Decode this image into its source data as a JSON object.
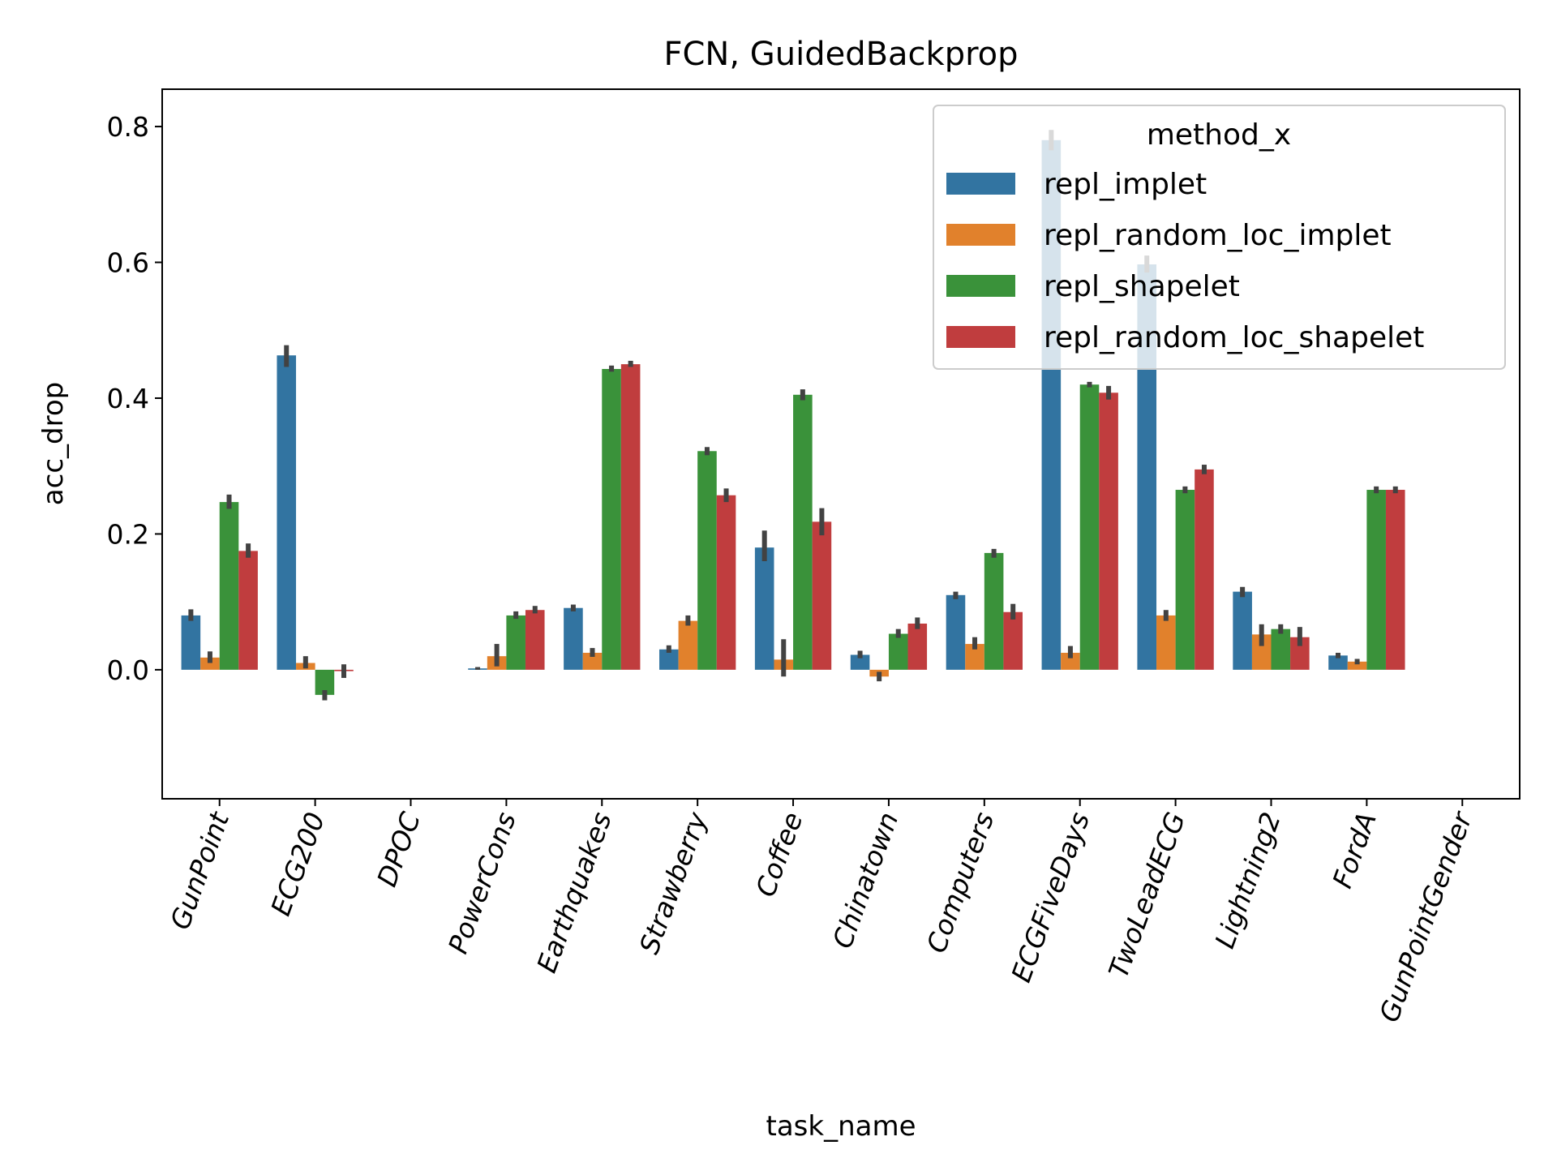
{
  "chart_data": {
    "type": "bar",
    "title": "FCN, GuidedBackprop",
    "xlabel": "task_name",
    "ylabel": "acc_drop",
    "ylim": [
      -0.19,
      0.855
    ],
    "yticks": [
      0.0,
      0.2,
      0.4,
      0.6,
      0.8
    ],
    "ytick_labels": [
      "0.0",
      "0.2",
      "0.4",
      "0.6",
      "0.8"
    ],
    "grid": false,
    "legend": {
      "title": "method_x",
      "placement": "top-right"
    },
    "categories": [
      "GunPoint",
      "ECG200",
      "DPOC",
      "PowerCons",
      "Earthquakes",
      "Strawberry",
      "Coffee",
      "Chinatown",
      "Computers",
      "ECGFiveDays",
      "TwoLeadECG",
      "Lightning2",
      "FordA",
      "GunPointGender"
    ],
    "series": [
      {
        "name": "repl_implet",
        "color": "#3274a1",
        "values": [
          0.08,
          0.463,
          null,
          0.002,
          0.091,
          0.03,
          0.18,
          0.022,
          0.11,
          0.78,
          0.597,
          0.115,
          0.021,
          null
        ],
        "err": [
          [
            0.072,
            0.089
          ],
          [
            0.446,
            0.478
          ],
          null,
          [
            0.0,
            0.004
          ],
          [
            0.086,
            0.096
          ],
          [
            0.025,
            0.036
          ],
          [
            0.16,
            0.205
          ],
          [
            0.017,
            0.028
          ],
          [
            0.104,
            0.115
          ],
          [
            0.765,
            0.795
          ],
          [
            0.585,
            0.61
          ],
          [
            0.107,
            0.122
          ],
          [
            0.017,
            0.025
          ],
          null
        ]
      },
      {
        "name": "repl_random_loc_implet",
        "color": "#e1812c",
        "values": [
          0.018,
          0.01,
          null,
          0.02,
          0.025,
          0.072,
          0.015,
          -0.01,
          0.038,
          0.025,
          0.08,
          0.052,
          0.012,
          null
        ],
        "err": [
          [
            0.01,
            0.027
          ],
          [
            0.002,
            0.02
          ],
          null,
          [
            0.005,
            0.038
          ],
          [
            0.019,
            0.032
          ],
          [
            0.065,
            0.08
          ],
          [
            -0.01,
            0.045
          ],
          [
            -0.017,
            -0.003
          ],
          [
            0.03,
            0.048
          ],
          [
            0.017,
            0.035
          ],
          [
            0.072,
            0.088
          ],
          [
            0.035,
            0.067
          ],
          [
            0.008,
            0.016
          ],
          null
        ]
      },
      {
        "name": "repl_shapelet",
        "color": "#3a923a",
        "values": [
          0.247,
          -0.037,
          null,
          0.08,
          0.443,
          0.322,
          0.405,
          0.053,
          0.172,
          0.42,
          0.265,
          0.06,
          0.265,
          null
        ],
        "err": [
          [
            0.237,
            0.258
          ],
          [
            -0.045,
            -0.03
          ],
          null,
          [
            0.075,
            0.086
          ],
          [
            0.439,
            0.448
          ],
          [
            0.316,
            0.328
          ],
          [
            0.397,
            0.413
          ],
          [
            0.047,
            0.06
          ],
          [
            0.165,
            0.178
          ],
          [
            0.416,
            0.424
          ],
          [
            0.26,
            0.27
          ],
          [
            0.053,
            0.067
          ],
          [
            0.26,
            0.27
          ],
          null
        ]
      },
      {
        "name": "repl_random_loc_shapelet",
        "color": "#c03d3e",
        "values": [
          0.175,
          -0.002,
          null,
          0.088,
          0.45,
          0.257,
          0.218,
          0.068,
          0.085,
          0.408,
          0.295,
          0.048,
          0.265,
          null
        ],
        "err": [
          [
            0.165,
            0.186
          ],
          [
            -0.012,
            0.008
          ],
          null,
          [
            0.083,
            0.094
          ],
          [
            0.446,
            0.455
          ],
          [
            0.247,
            0.267
          ],
          [
            0.198,
            0.238
          ],
          [
            0.06,
            0.077
          ],
          [
            0.074,
            0.097
          ],
          [
            0.398,
            0.418
          ],
          [
            0.288,
            0.302
          ],
          [
            0.035,
            0.063
          ],
          [
            0.26,
            0.27
          ],
          null
        ]
      }
    ]
  }
}
